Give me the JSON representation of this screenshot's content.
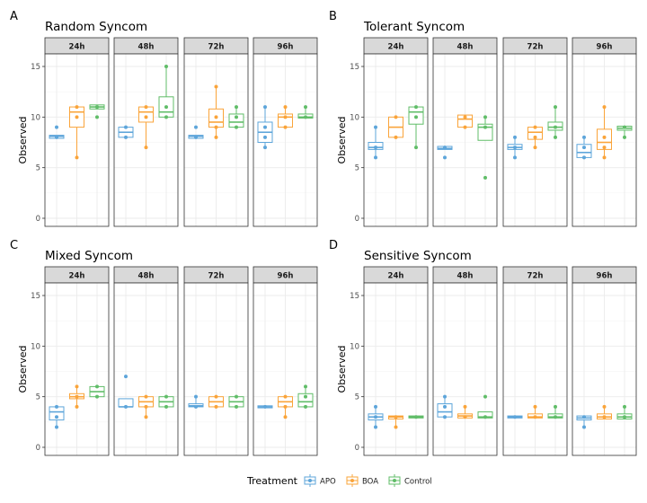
{
  "chart_data": [
    {
      "type": "boxplot",
      "panel_letter": "A",
      "title": "Random Syncom",
      "ylabel": "Observed",
      "ylim": [
        0,
        15
      ],
      "yticks": [
        0,
        5,
        10,
        15
      ],
      "facets": [
        {
          "label": "24h",
          "groups": [
            {
              "treatment": "APO",
              "q1": 7.9,
              "median": 8.1,
              "q3": 8.2,
              "wlo": 8,
              "whi": 8.2,
              "points": [
                9,
                8
              ]
            },
            {
              "treatment": "BOA",
              "q1": 9,
              "median": 10.5,
              "q3": 11,
              "wlo": 6,
              "whi": 11,
              "points": [
                11,
                10,
                6
              ]
            },
            {
              "treatment": "Control",
              "q1": 10.8,
              "median": 11,
              "q3": 11.2,
              "wlo": 10.8,
              "whi": 11.2,
              "points": [
                11,
                10
              ]
            }
          ]
        },
        {
          "label": "48h",
          "groups": [
            {
              "treatment": "APO",
              "q1": 8,
              "median": 8.5,
              "q3": 9,
              "wlo": 8,
              "whi": 9,
              "points": [
                9,
                8
              ]
            },
            {
              "treatment": "BOA",
              "q1": 9.5,
              "median": 10.5,
              "q3": 11,
              "wlo": 7,
              "whi": 11,
              "points": [
                11,
                10,
                7
              ]
            },
            {
              "treatment": "Control",
              "q1": 10,
              "median": 10.5,
              "q3": 12,
              "wlo": 10,
              "whi": 15,
              "points": [
                15,
                11,
                10
              ]
            }
          ]
        },
        {
          "label": "72h",
          "groups": [
            {
              "treatment": "APO",
              "q1": 7.9,
              "median": 8.1,
              "q3": 8.2,
              "wlo": 8,
              "whi": 8.2,
              "points": [
                9,
                8
              ]
            },
            {
              "treatment": "BOA",
              "q1": 9,
              "median": 9.5,
              "q3": 10.8,
              "wlo": 8,
              "whi": 13,
              "points": [
                13,
                10,
                9,
                8
              ]
            },
            {
              "treatment": "Control",
              "q1": 9,
              "median": 9.5,
              "q3": 10.3,
              "wlo": 9,
              "whi": 11,
              "points": [
                11,
                10,
                9
              ]
            }
          ]
        },
        {
          "label": "96h",
          "groups": [
            {
              "treatment": "APO",
              "q1": 7.5,
              "median": 8.5,
              "q3": 9.5,
              "wlo": 7,
              "whi": 11,
              "points": [
                11,
                9,
                8,
                7
              ]
            },
            {
              "treatment": "BOA",
              "q1": 9,
              "median": 10,
              "q3": 10.3,
              "wlo": 9,
              "whi": 11,
              "points": [
                11,
                10,
                9
              ]
            },
            {
              "treatment": "Control",
              "q1": 9.9,
              "median": 10,
              "q3": 10.3,
              "wlo": 10,
              "whi": 11,
              "points": [
                11,
                10
              ]
            }
          ]
        }
      ]
    },
    {
      "type": "boxplot",
      "panel_letter": "B",
      "title": "Tolerant Syncom",
      "ylabel": "Observed",
      "ylim": [
        0,
        15
      ],
      "yticks": [
        0,
        5,
        10,
        15
      ],
      "facets": [
        {
          "label": "24h",
          "groups": [
            {
              "treatment": "APO",
              "q1": 6.8,
              "median": 7,
              "q3": 7.5,
              "wlo": 6,
              "whi": 9,
              "points": [
                9,
                7,
                6
              ]
            },
            {
              "treatment": "BOA",
              "q1": 8,
              "median": 9,
              "q3": 10,
              "wlo": 8,
              "whi": 10,
              "points": [
                10,
                8
              ]
            },
            {
              "treatment": "Control",
              "q1": 9.3,
              "median": 10.5,
              "q3": 11,
              "wlo": 7,
              "whi": 11,
              "points": [
                11,
                10,
                7
              ]
            }
          ]
        },
        {
          "label": "48h",
          "groups": [
            {
              "treatment": "APO",
              "q1": 6.8,
              "median": 6.9,
              "q3": 7.1,
              "wlo": 6.8,
              "whi": 7.1,
              "points": [
                7,
                6
              ]
            },
            {
              "treatment": "BOA",
              "q1": 9,
              "median": 9.8,
              "q3": 10.2,
              "wlo": 9,
              "whi": 10.2,
              "points": [
                10,
                9
              ]
            },
            {
              "treatment": "Control",
              "q1": 7.7,
              "median": 9,
              "q3": 9.3,
              "wlo": 7.7,
              "whi": 10,
              "points": [
                10,
                9,
                4
              ]
            }
          ]
        },
        {
          "label": "72h",
          "groups": [
            {
              "treatment": "APO",
              "q1": 6.8,
              "median": 7,
              "q3": 7.3,
              "wlo": 6,
              "whi": 8,
              "points": [
                8,
                7,
                6
              ]
            },
            {
              "treatment": "BOA",
              "q1": 7.8,
              "median": 8.5,
              "q3": 9,
              "wlo": 7,
              "whi": 9,
              "points": [
                9,
                8,
                7
              ]
            },
            {
              "treatment": "Control",
              "q1": 8.7,
              "median": 9,
              "q3": 9.5,
              "wlo": 8,
              "whi": 11,
              "points": [
                11,
                9,
                8
              ]
            }
          ]
        },
        {
          "label": "96h",
          "groups": [
            {
              "treatment": "APO",
              "q1": 6,
              "median": 6.5,
              "q3": 7.3,
              "wlo": 6,
              "whi": 8,
              "points": [
                8,
                7,
                6
              ]
            },
            {
              "treatment": "BOA",
              "q1": 6.8,
              "median": 7.5,
              "q3": 8.8,
              "wlo": 6,
              "whi": 11,
              "points": [
                11,
                8,
                7,
                6
              ]
            },
            {
              "treatment": "Control",
              "q1": 8.7,
              "median": 8.9,
              "q3": 9.1,
              "wlo": 8,
              "whi": 9.1,
              "points": [
                9,
                8
              ]
            }
          ]
        }
      ]
    },
    {
      "type": "boxplot",
      "panel_letter": "C",
      "title": "Mixed Syncom",
      "ylabel": "Observed",
      "ylim": [
        0,
        15
      ],
      "yticks": [
        0,
        5,
        10,
        15
      ],
      "facets": [
        {
          "label": "24h",
          "groups": [
            {
              "treatment": "APO",
              "q1": 2.7,
              "median": 3.5,
              "q3": 4,
              "wlo": 2,
              "whi": 4,
              "points": [
                4,
                3,
                2
              ]
            },
            {
              "treatment": "BOA",
              "q1": 4.8,
              "median": 5,
              "q3": 5.3,
              "wlo": 4,
              "whi": 6,
              "points": [
                6,
                5,
                4
              ]
            },
            {
              "treatment": "Control",
              "q1": 5,
              "median": 5.5,
              "q3": 6,
              "wlo": 5,
              "whi": 6,
              "points": [
                6,
                5
              ]
            }
          ]
        },
        {
          "label": "48h",
          "groups": [
            {
              "treatment": "APO",
              "q1": 4,
              "median": 4,
              "q3": 4.8,
              "wlo": 4,
              "whi": 4.8,
              "points": [
                7,
                4
              ]
            },
            {
              "treatment": "BOA",
              "q1": 4,
              "median": 4.5,
              "q3": 5,
              "wlo": 3,
              "whi": 5,
              "points": [
                5,
                4,
                3
              ]
            },
            {
              "treatment": "Control",
              "q1": 4,
              "median": 4.5,
              "q3": 5,
              "wlo": 4,
              "whi": 5,
              "points": [
                5,
                4
              ]
            }
          ]
        },
        {
          "label": "72h",
          "groups": [
            {
              "treatment": "APO",
              "q1": 4,
              "median": 4.1,
              "q3": 4.3,
              "wlo": 4,
              "whi": 5,
              "points": [
                5,
                4
              ]
            },
            {
              "treatment": "BOA",
              "q1": 4,
              "median": 4.5,
              "q3": 5,
              "wlo": 4,
              "whi": 5,
              "points": [
                5,
                4
              ]
            },
            {
              "treatment": "Control",
              "q1": 4,
              "median": 4.5,
              "q3": 5,
              "wlo": 4,
              "whi": 5,
              "points": [
                5,
                4
              ]
            }
          ]
        },
        {
          "label": "96h",
          "groups": [
            {
              "treatment": "APO",
              "q1": 3.9,
              "median": 4,
              "q3": 4.1,
              "wlo": 3.9,
              "whi": 4.1,
              "points": [
                4
              ]
            },
            {
              "treatment": "BOA",
              "q1": 4,
              "median": 4.5,
              "q3": 5,
              "wlo": 3,
              "whi": 5,
              "points": [
                5,
                4,
                3
              ]
            },
            {
              "treatment": "Control",
              "q1": 4,
              "median": 4.5,
              "q3": 5.3,
              "wlo": 4,
              "whi": 6,
              "points": [
                6,
                5,
                4
              ]
            }
          ]
        }
      ]
    },
    {
      "type": "boxplot",
      "panel_letter": "D",
      "title": "Sensitive Syncom",
      "ylabel": "Observed",
      "ylim": [
        0,
        15
      ],
      "yticks": [
        0,
        5,
        10,
        15
      ],
      "facets": [
        {
          "label": "24h",
          "groups": [
            {
              "treatment": "APO",
              "q1": 2.7,
              "median": 3,
              "q3": 3.3,
              "wlo": 2,
              "whi": 4,
              "points": [
                4,
                3,
                2
              ]
            },
            {
              "treatment": "BOA",
              "q1": 2.8,
              "median": 3,
              "q3": 3.1,
              "wlo": 2,
              "whi": 3.1,
              "points": [
                3,
                2
              ]
            },
            {
              "treatment": "Control",
              "q1": 2.9,
              "median": 3,
              "q3": 3.1,
              "wlo": 2.9,
              "whi": 3.1,
              "points": [
                3
              ]
            }
          ]
        },
        {
          "label": "48h",
          "groups": [
            {
              "treatment": "APO",
              "q1": 3,
              "median": 3.5,
              "q3": 4.3,
              "wlo": 3,
              "whi": 5,
              "points": [
                5,
                4,
                3
              ]
            },
            {
              "treatment": "BOA",
              "q1": 2.9,
              "median": 3.1,
              "q3": 3.3,
              "wlo": 2.9,
              "whi": 4,
              "points": [
                4,
                3
              ]
            },
            {
              "treatment": "Control",
              "q1": 2.9,
              "median": 3,
              "q3": 3.5,
              "wlo": 2.9,
              "whi": 3.5,
              "points": [
                5,
                3
              ]
            }
          ]
        },
        {
          "label": "72h",
          "groups": [
            {
              "treatment": "APO",
              "q1": 2.9,
              "median": 3,
              "q3": 3.1,
              "wlo": 2.9,
              "whi": 3.1,
              "points": [
                3
              ]
            },
            {
              "treatment": "BOA",
              "q1": 2.9,
              "median": 3,
              "q3": 3.3,
              "wlo": 2.9,
              "whi": 4,
              "points": [
                4,
                3
              ]
            },
            {
              "treatment": "Control",
              "q1": 2.9,
              "median": 3,
              "q3": 3.3,
              "wlo": 2.9,
              "whi": 4,
              "points": [
                4,
                3
              ]
            }
          ]
        },
        {
          "label": "96h",
          "groups": [
            {
              "treatment": "APO",
              "q1": 2.7,
              "median": 2.9,
              "q3": 3.1,
              "wlo": 2,
              "whi": 3.1,
              "points": [
                3,
                2
              ]
            },
            {
              "treatment": "BOA",
              "q1": 2.8,
              "median": 3,
              "q3": 3.3,
              "wlo": 2.8,
              "whi": 4,
              "points": [
                4,
                3
              ]
            },
            {
              "treatment": "Control",
              "q1": 2.8,
              "median": 3,
              "q3": 3.3,
              "wlo": 2.8,
              "whi": 4,
              "points": [
                4,
                3
              ]
            }
          ]
        }
      ]
    }
  ],
  "legend": {
    "title": "Treatment",
    "position": "bottom",
    "items": [
      {
        "label": "APO",
        "color": "#5DA5DA"
      },
      {
        "label": "BOA",
        "color": "#FAA43A"
      },
      {
        "label": "Control",
        "color": "#60BD68"
      }
    ]
  },
  "colors": {
    "strip_fill": "#d9d9d9",
    "panel_border": "#333333",
    "grid": "#ebebeb"
  }
}
